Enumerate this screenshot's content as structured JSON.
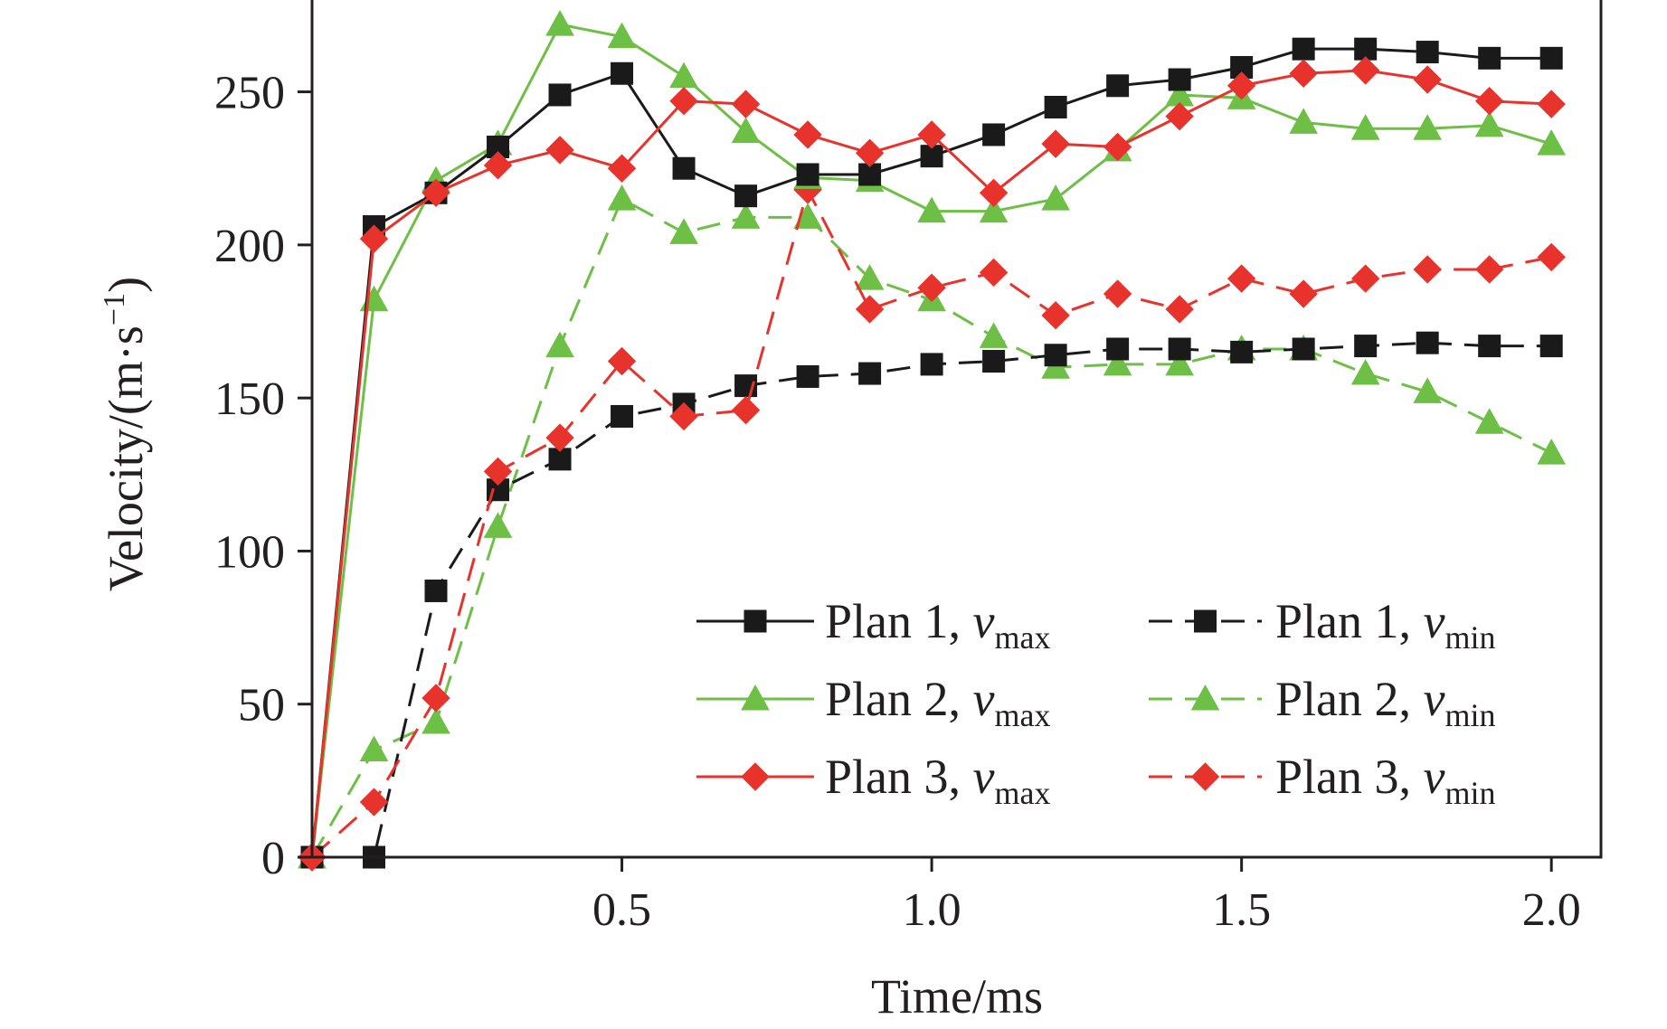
{
  "chart_data": {
    "type": "line",
    "title": "",
    "xlabel": "Time/ms",
    "ylabel_main": "Velocity/(m·s",
    "ylabel_sup": "−1",
    "ylabel_close": ")",
    "xlim": [
      0,
      2.08
    ],
    "ylim": [
      0,
      280
    ],
    "xticks": [
      0.5,
      1.0,
      1.5,
      2.0
    ],
    "xtick_labels": [
      "0.5",
      "1.0",
      "1.5",
      "2.0"
    ],
    "yticks": [
      0,
      50,
      100,
      150,
      200,
      250
    ],
    "ytick_labels": [
      "0",
      "50",
      "100",
      "150",
      "200",
      "250"
    ],
    "x": [
      0,
      0.1,
      0.2,
      0.3,
      0.4,
      0.5,
      0.6,
      0.7,
      0.8,
      0.9,
      1.0,
      1.1,
      1.2,
      1.3,
      1.4,
      1.5,
      1.6,
      1.7,
      1.8,
      1.9,
      2.0
    ],
    "legend_position": "lower-right",
    "series": [
      {
        "id": "plan1-vmax",
        "plan": "Plan 1, ",
        "var": "v",
        "sub": "max",
        "color": "#1a1a1a",
        "marker": "square",
        "dashed": false,
        "values": [
          0,
          206,
          217,
          232,
          249,
          256,
          225,
          216,
          223,
          223,
          229,
          236,
          245,
          252,
          254,
          258,
          264,
          264,
          263,
          261,
          261
        ]
      },
      {
        "id": "plan1-vmin",
        "plan": "Plan 1, ",
        "var": "v",
        "sub": "min",
        "color": "#1a1a1a",
        "marker": "square",
        "dashed": true,
        "values": [
          0,
          0,
          87,
          120,
          130,
          144,
          148,
          154,
          157,
          158,
          161,
          162,
          164,
          166,
          166,
          165,
          166,
          167,
          168,
          167,
          167
        ]
      },
      {
        "id": "plan2-vmax",
        "plan": "Plan 2, ",
        "var": "v",
        "sub": "max",
        "color": "#6dbf45",
        "marker": "triangle",
        "dashed": false,
        "values": [
          0,
          182,
          221,
          233,
          272,
          268,
          255,
          237,
          222,
          221,
          211,
          211,
          215,
          231,
          249,
          248,
          240,
          238,
          238,
          239,
          233
        ]
      },
      {
        "id": "plan2-vmin",
        "plan": "Plan 2, ",
        "var": "v",
        "sub": "min",
        "color": "#6dbf45",
        "marker": "triangle",
        "dashed": true,
        "values": [
          0,
          35,
          44,
          108,
          167,
          215,
          204,
          209,
          209,
          189,
          182,
          170,
          160,
          161,
          161,
          166,
          166,
          158,
          152,
          142,
          132
        ]
      },
      {
        "id": "plan3-vmax",
        "plan": "Plan 3, ",
        "var": "v",
        "sub": "max",
        "color": "#e8322c",
        "marker": "diamond",
        "dashed": false,
        "values": [
          0,
          202,
          217,
          226,
          231,
          225,
          247,
          246,
          236,
          230,
          236,
          217,
          233,
          232,
          242,
          252,
          256,
          257,
          254,
          247,
          246
        ]
      },
      {
        "id": "plan3-vmin",
        "plan": "Plan 3, ",
        "var": "v",
        "sub": "min",
        "color": "#e8322c",
        "marker": "diamond",
        "dashed": true,
        "values": [
          0,
          18,
          52,
          126,
          137,
          162,
          144,
          146,
          218,
          179,
          186,
          191,
          177,
          184,
          179,
          189,
          184,
          189,
          192,
          192,
          196
        ]
      }
    ]
  }
}
